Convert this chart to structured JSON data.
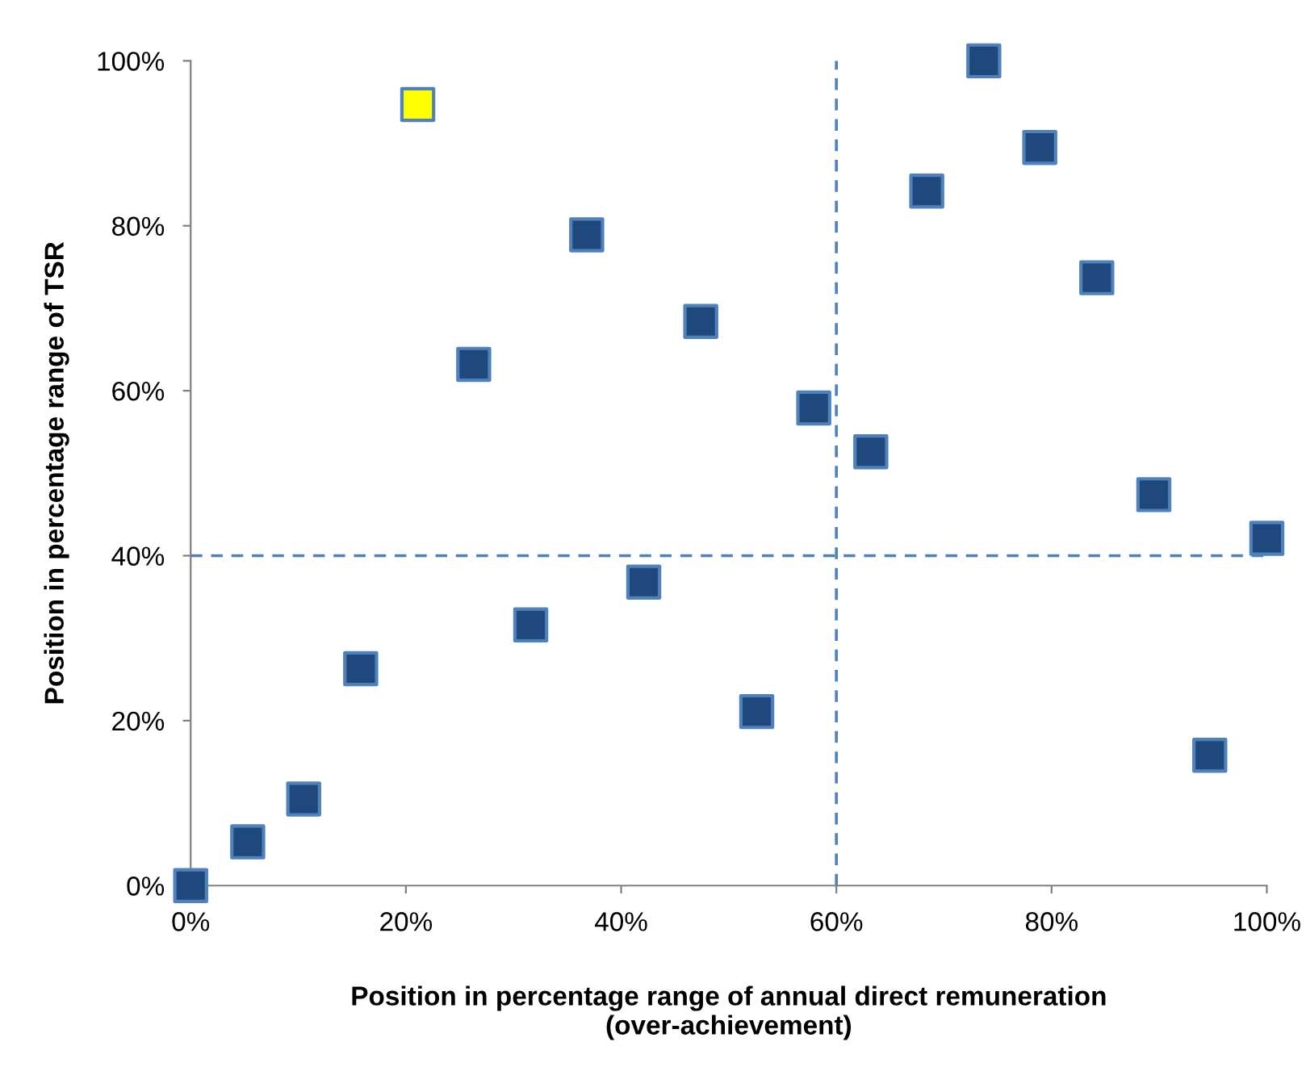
{
  "chart_data": {
    "type": "scatter",
    "xlabel": "Position in percentage range of annual direct remuneration\n(over-achievement)",
    "ylabel": "Position in percentage range of TSR",
    "series": [
      {
        "color": "#1f497d",
        "x": [
          0,
          5.3,
          10.5,
          15.8,
          26.3,
          31.6,
          36.8,
          42.1,
          47.4,
          52.6,
          57.9,
          63.2,
          68.4,
          73.7,
          78.9,
          84.2,
          89.5,
          94.7,
          100
        ],
        "values": [
          0,
          5.3,
          10.5,
          26.3,
          63.2,
          31.6,
          78.9,
          36.8,
          68.4,
          21.1,
          57.9,
          52.6,
          84.2,
          100,
          89.5,
          73.7,
          47.4,
          15.8,
          42.1
        ]
      },
      {
        "color": "#ffff00",
        "x": [
          21.1
        ],
        "values": [
          94.7
        ]
      }
    ],
    "marker": "square",
    "xlim": [
      0,
      100
    ],
    "ylim": [
      0,
      100
    ],
    "xticks": [
      {
        "value": 0,
        "label": "0%"
      },
      {
        "value": 20,
        "label": "20%"
      },
      {
        "value": 40,
        "label": "40%"
      },
      {
        "value": 60,
        "label": "60%"
      },
      {
        "value": 80,
        "label": "80%"
      },
      {
        "value": 100,
        "label": "100%"
      }
    ],
    "yticks": [
      {
        "value": 0,
        "label": "0%"
      },
      {
        "value": 20,
        "label": "20%"
      },
      {
        "value": 40,
        "label": "40%"
      },
      {
        "value": 60,
        "label": "60%"
      },
      {
        "value": 80,
        "label": "80%"
      },
      {
        "value": 100,
        "label": "100%"
      }
    ],
    "ref_lines": [
      {
        "axis": "x",
        "value": 60,
        "color": "#4f81bd",
        "line_style": "dashed"
      },
      {
        "axis": "y",
        "value": 40,
        "color": "#4f81bd",
        "line_style": "dashed"
      }
    ],
    "grid": false,
    "legend": false
  }
}
